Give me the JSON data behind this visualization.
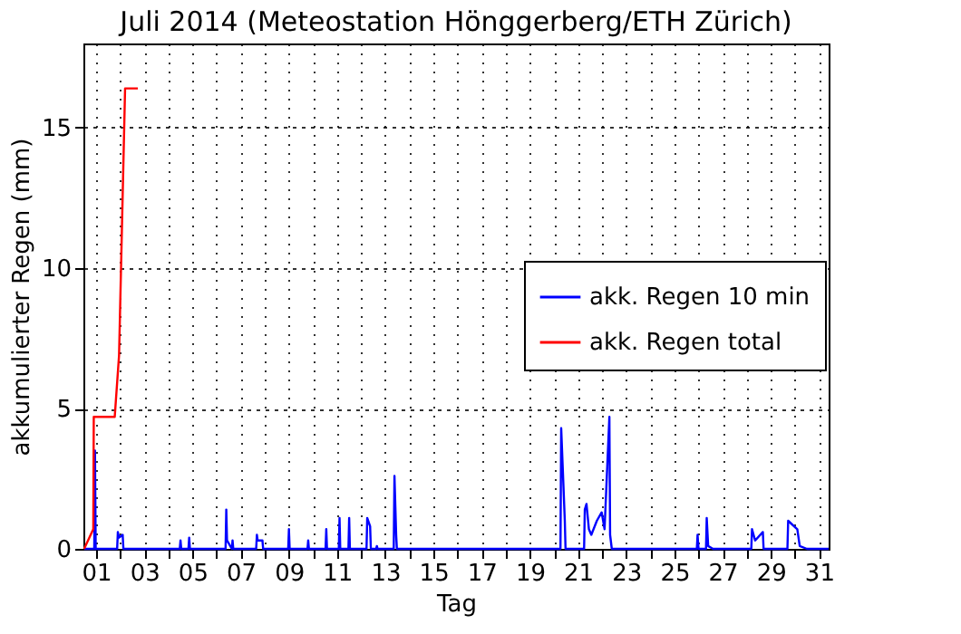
{
  "chart_data": {
    "type": "line",
    "title": "Juli 2014  (Meteostation Hönggerberg/ETH Zürich)",
    "xlabel": "Tag",
    "ylabel": "akkumulierter Regen (mm)",
    "xlim": [
      0.47,
      31.4
    ],
    "ylim": [
      0,
      18
    ],
    "xticks": [
      {
        "value": 1,
        "label": "01"
      },
      {
        "value": 2,
        "label": null
      },
      {
        "value": 3,
        "label": "03"
      },
      {
        "value": 4,
        "label": null
      },
      {
        "value": 5,
        "label": "05"
      },
      {
        "value": 6,
        "label": null
      },
      {
        "value": 7,
        "label": "07"
      },
      {
        "value": 8,
        "label": null
      },
      {
        "value": 9,
        "label": "09"
      },
      {
        "value": 10,
        "label": null
      },
      {
        "value": 11,
        "label": "11"
      },
      {
        "value": 12,
        "label": null
      },
      {
        "value": 13,
        "label": "13"
      },
      {
        "value": 14,
        "label": null
      },
      {
        "value": 15,
        "label": "15"
      },
      {
        "value": 16,
        "label": null
      },
      {
        "value": 17,
        "label": "17"
      },
      {
        "value": 18,
        "label": null
      },
      {
        "value": 19,
        "label": "19"
      },
      {
        "value": 20,
        "label": null
      },
      {
        "value": 21,
        "label": "21"
      },
      {
        "value": 22,
        "label": null
      },
      {
        "value": 23,
        "label": "23"
      },
      {
        "value": 24,
        "label": null
      },
      {
        "value": 25,
        "label": "25"
      },
      {
        "value": 26,
        "label": null
      },
      {
        "value": 27,
        "label": "27"
      },
      {
        "value": 28,
        "label": null
      },
      {
        "value": 29,
        "label": "29"
      },
      {
        "value": 30,
        "label": null
      },
      {
        "value": 31,
        "label": "31"
      }
    ],
    "yticks": [
      0,
      5,
      10,
      15
    ],
    "grid": true,
    "legend": "right",
    "marker": "none",
    "line_style": "solid",
    "series": [
      {
        "name": "akk. Regen 10 min",
        "color": "#0000ff",
        "x": [
          0.5,
          0.92,
          0.95,
          0.98,
          1.87,
          1.9,
          1.95,
          2.1,
          2.13,
          4.47,
          4.5,
          4.53,
          4.83,
          4.86,
          4.89,
          6.37,
          6.4,
          6.43,
          6.63,
          6.66,
          6.69,
          7.64,
          7.67,
          7.7,
          7.87,
          7.9,
          7.93,
          8.97,
          9.0,
          9.03,
          9.77,
          9.8,
          9.83,
          10.52,
          10.55,
          10.58,
          11.07,
          11.1,
          11.13,
          11.47,
          11.5,
          11.53,
          12.22,
          12.25,
          12.37,
          12.4,
          12.62,
          12.65,
          12.68,
          13.35,
          13.38,
          13.45,
          13.48,
          20.27,
          20.3,
          20.45,
          20.48,
          21.25,
          21.28,
          21.35,
          21.45,
          21.55,
          21.78,
          21.98,
          22.1,
          22.3,
          22.33,
          22.4,
          25.93,
          25.96,
          26.0,
          26.31,
          26.34,
          26.4,
          26.6,
          28.19,
          28.22,
          28.35,
          28.67,
          28.7,
          29.69,
          29.72,
          30.1,
          30.2,
          30.5,
          31.4
        ],
        "values": [
          0,
          0,
          3.5,
          0,
          0,
          0.6,
          0.4,
          0.5,
          0,
          0,
          0.3,
          0,
          0,
          0.4,
          0,
          0,
          1.4,
          0.3,
          0,
          0.3,
          0,
          0,
          0.5,
          0.3,
          0.3,
          0.3,
          0,
          0,
          0.7,
          0,
          0,
          0.3,
          0,
          0,
          0.7,
          0,
          0,
          1.1,
          0,
          0,
          1.1,
          0,
          0,
          1.1,
          0.8,
          0,
          0,
          0.1,
          0,
          0,
          2.6,
          0.5,
          0,
          0,
          4.3,
          1.0,
          0,
          0,
          1.4,
          1.6,
          0.7,
          0.5,
          1.0,
          1.3,
          0.7,
          4.7,
          0.5,
          0,
          0,
          0.5,
          0,
          0,
          1.1,
          0.1,
          0,
          0,
          0.7,
          0.3,
          0.6,
          0,
          0,
          1.0,
          0.7,
          0.1,
          0,
          0
        ]
      },
      {
        "name": "akk. Regen total",
        "color": "#ff0000",
        "x": [
          0.5,
          0.88,
          0.9,
          1.77,
          1.95,
          2.2,
          2.73
        ],
        "values": [
          0,
          0.7,
          4.7,
          4.7,
          6.9,
          16.4,
          16.4
        ]
      }
    ]
  }
}
